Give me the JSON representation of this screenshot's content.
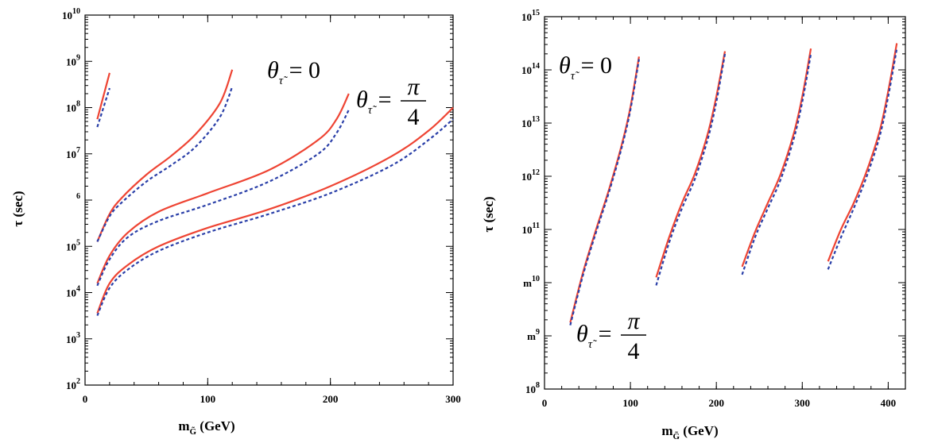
{
  "chart_data": [
    {
      "type": "line",
      "xlabel_main": "m",
      "xlabel_sub": "G̃",
      "xlabel_unit": " (GeV)",
      "ylabel": "τ (sec)",
      "xlim": [
        0,
        300
      ],
      "ylim_log10": [
        2,
        10
      ],
      "x_ticks": [
        0,
        100,
        200,
        300
      ],
      "y_tick_labels": [
        {
          "exp": 2,
          "base": "10",
          "sup": "2"
        },
        {
          "exp": 3,
          "base": "10",
          "sup": "3"
        },
        {
          "exp": 4,
          "base": "10",
          "sup": "4"
        },
        {
          "exp": 5,
          "base": "10",
          "sup": "5"
        },
        {
          "exp": 6,
          "base": "",
          "sup": "6"
        },
        {
          "exp": 7,
          "base": "10",
          "sup": "7"
        },
        {
          "exp": 8,
          "base": "10",
          "sup": "8"
        },
        {
          "exp": 9,
          "base": "10",
          "sup": "9"
        },
        {
          "exp": 10,
          "base": "10",
          "sup": "10"
        }
      ],
      "annotations": [
        {
          "id": "theta0",
          "theta": "θ",
          "sub": "τ̃",
          "rhs": "= 0"
        },
        {
          "id": "thetapi4",
          "theta": "θ",
          "sub": "τ̃",
          "rhs": "=",
          "num": "π",
          "den": "4"
        }
      ],
      "series": [
        {
          "name": "θ=0, curve 1",
          "style": "solid",
          "x": [
            10,
            20
          ],
          "log10y": [
            7.75,
            8.75
          ]
        },
        {
          "name": "θ=π/4, curve 1",
          "style": "dotted",
          "x": [
            10,
            20
          ],
          "log10y": [
            7.58,
            8.42
          ]
        },
        {
          "name": "θ=0, curve 2",
          "style": "solid",
          "x": [
            10,
            20,
            30,
            50,
            70,
            90,
            110,
            120
          ],
          "log10y": [
            5.1,
            5.7,
            6.05,
            6.55,
            6.95,
            7.42,
            8.1,
            8.82
          ]
        },
        {
          "name": "θ=π/4, curve 2",
          "style": "dotted",
          "x": [
            10,
            20,
            30,
            50,
            70,
            90,
            110,
            120
          ],
          "log10y": [
            5.1,
            5.65,
            5.95,
            6.4,
            6.75,
            7.15,
            7.8,
            8.45
          ]
        },
        {
          "name": "θ=0, curve 3",
          "style": "solid",
          "x": [
            10,
            20,
            35,
            60,
            100,
            150,
            190,
            205,
            215
          ],
          "log10y": [
            4.2,
            4.8,
            5.3,
            5.75,
            6.15,
            6.65,
            7.3,
            7.75,
            8.3
          ]
        },
        {
          "name": "θ=π/4, curve 3",
          "style": "dotted",
          "x": [
            10,
            20,
            35,
            60,
            100,
            150,
            190,
            205,
            215
          ],
          "log10y": [
            4.15,
            4.72,
            5.2,
            5.55,
            5.9,
            6.4,
            7.0,
            7.45,
            7.95
          ]
        },
        {
          "name": "θ=0, curve 4",
          "style": "solid",
          "x": [
            10,
            20,
            35,
            60,
            100,
            150,
            200,
            250,
            280,
            300
          ],
          "log10y": [
            3.55,
            4.2,
            4.6,
            5.0,
            5.4,
            5.8,
            6.3,
            6.95,
            7.5,
            8.0
          ]
        },
        {
          "name": "θ=π/4, curve 4",
          "style": "dotted",
          "x": [
            10,
            20,
            35,
            60,
            100,
            150,
            200,
            250,
            280,
            300
          ],
          "log10y": [
            3.5,
            4.1,
            4.5,
            4.9,
            5.3,
            5.7,
            6.15,
            6.75,
            7.3,
            7.75
          ]
        }
      ]
    },
    {
      "type": "line",
      "xlabel_main": "m",
      "xlabel_sub": "G̃",
      "xlabel_unit": " (GeV)",
      "ylabel": "τ (sec)",
      "xlim": [
        0,
        420
      ],
      "ylim_log10": [
        8,
        15
      ],
      "x_ticks": [
        0,
        100,
        200,
        300,
        400
      ],
      "y_tick_labels": [
        {
          "exp": 8,
          "base": "10",
          "sup": "8"
        },
        {
          "exp": 9,
          "base": "m",
          "sup": "9"
        },
        {
          "exp": 10,
          "base": "m",
          "sup": "10"
        },
        {
          "exp": 11,
          "base": "10",
          "sup": "11"
        },
        {
          "exp": 12,
          "base": "10",
          "sup": "12"
        },
        {
          "exp": 13,
          "base": "10",
          "sup": "13"
        },
        {
          "exp": 14,
          "base": "10",
          "sup": "14"
        },
        {
          "exp": 15,
          "base": "10",
          "sup": "15"
        }
      ],
      "annotations": [
        {
          "id": "theta0",
          "theta": "θ",
          "sub": "τ̃",
          "rhs": "= 0"
        },
        {
          "id": "thetapi4",
          "theta": "θ",
          "sub": "τ̃",
          "rhs": "=",
          "num": "π",
          "den": "4"
        }
      ],
      "series": [
        {
          "name": "θ=0, curve 1",
          "style": "solid",
          "x": [
            30,
            45,
            60,
            75,
            90,
            100,
            110
          ],
          "log10y": [
            9.25,
            10.2,
            11.0,
            11.75,
            12.6,
            13.3,
            14.25
          ]
        },
        {
          "name": "θ=π/4, curve 1",
          "style": "dotted",
          "x": [
            30,
            45,
            60,
            75,
            90,
            100,
            110
          ],
          "log10y": [
            9.2,
            10.15,
            10.95,
            11.7,
            12.55,
            13.25,
            14.2
          ]
        },
        {
          "name": "θ=0, curve 2",
          "style": "solid",
          "x": [
            130,
            145,
            160,
            175,
            190,
            200,
            210
          ],
          "log10y": [
            10.1,
            10.85,
            11.5,
            12.05,
            12.8,
            13.5,
            14.35
          ]
        },
        {
          "name": "θ=π/4, curve 2",
          "style": "dotted",
          "x": [
            130,
            145,
            160,
            175,
            190,
            200,
            210
          ],
          "log10y": [
            9.95,
            10.75,
            11.4,
            11.95,
            12.7,
            13.4,
            14.3
          ]
        },
        {
          "name": "θ=0, curve 3",
          "style": "solid",
          "x": [
            230,
            245,
            260,
            275,
            290,
            300,
            310
          ],
          "log10y": [
            10.3,
            10.95,
            11.5,
            12.05,
            12.8,
            13.5,
            14.4
          ]
        },
        {
          "name": "θ=π/4, curve 3",
          "style": "dotted",
          "x": [
            230,
            245,
            260,
            275,
            290,
            300,
            310
          ],
          "log10y": [
            10.15,
            10.85,
            11.4,
            11.95,
            12.7,
            13.4,
            14.3
          ]
        },
        {
          "name": "θ=0, curve 4",
          "style": "solid",
          "x": [
            330,
            345,
            360,
            375,
            390,
            400,
            410
          ],
          "log10y": [
            10.4,
            11.0,
            11.5,
            12.1,
            12.85,
            13.6,
            14.5
          ]
        },
        {
          "name": "θ=π/4, curve 4",
          "style": "dotted",
          "x": [
            330,
            345,
            360,
            375,
            390,
            400,
            410
          ],
          "log10y": [
            10.25,
            10.85,
            11.4,
            12.0,
            12.75,
            13.5,
            14.4
          ]
        }
      ]
    }
  ]
}
